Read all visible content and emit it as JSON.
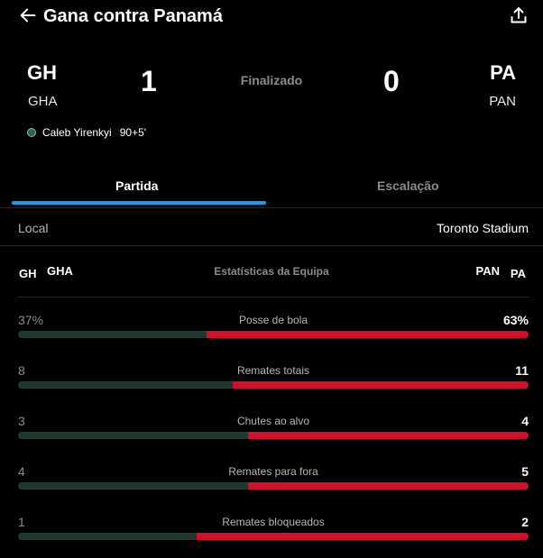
{
  "header": {
    "title": "Gana contra Panamá"
  },
  "match": {
    "home": {
      "abbr": "GH",
      "code": "GHA",
      "score": "1"
    },
    "away": {
      "abbr": "PA",
      "code": "PAN",
      "score": "0"
    },
    "status": "Finalizado",
    "scorers": [
      {
        "name": "Caleb Yirenkyi",
        "time": "90+5'"
      }
    ]
  },
  "tabs": [
    {
      "label": "Partida",
      "active": true
    },
    {
      "label": "Escalação",
      "active": false
    }
  ],
  "venue": {
    "label": "Local",
    "value": "Toronto Stadium"
  },
  "stats_header": {
    "home_abbr": "GH",
    "home_code": "GHA",
    "title": "Estatísticas da Equipa",
    "away_code": "PAN",
    "away_abbr": "PA"
  },
  "stats": [
    {
      "name": "Posse de bola",
      "home": "37%",
      "away": "63%",
      "home_share": 0.37
    },
    {
      "name": "Remates totais",
      "home": "8",
      "away": "11",
      "home_share": 0.42
    },
    {
      "name": "Chutes ao alvo",
      "home": "3",
      "away": "4",
      "home_share": 0.45
    },
    {
      "name": "Remates para fora",
      "home": "4",
      "away": "5",
      "home_share": 0.45
    },
    {
      "name": "Remates bloqueados",
      "home": "1",
      "away": "2",
      "home_share": 0.35
    }
  ],
  "colors": {
    "home_bar": "#1e3830",
    "away_bar": "#d1102b",
    "tab_accent": "#1e9be8"
  }
}
